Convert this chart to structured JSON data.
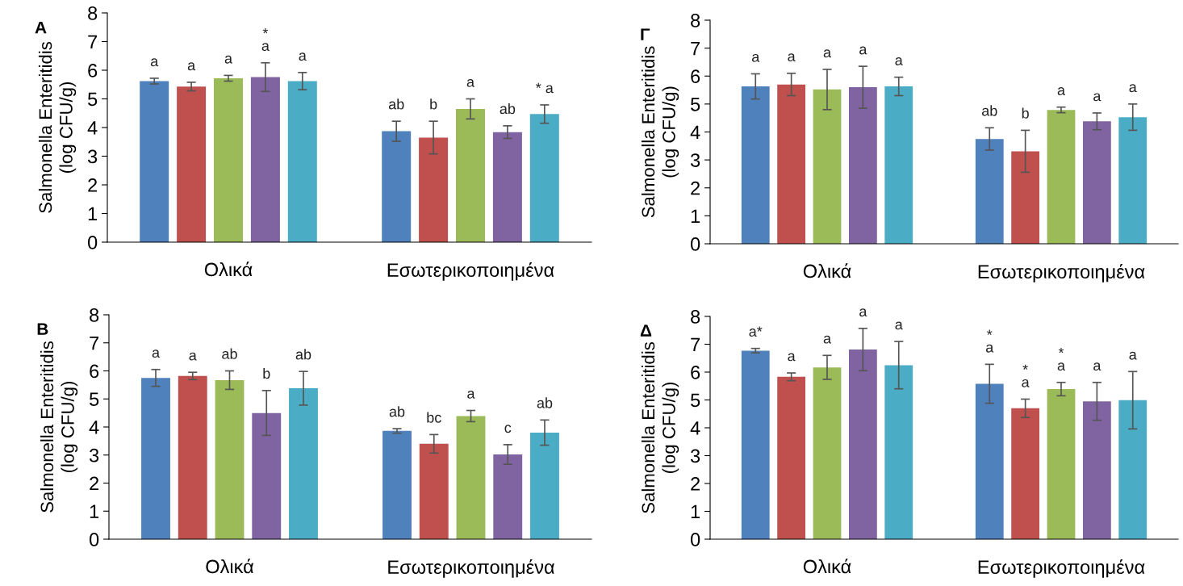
{
  "chart_data": [
    {
      "type": "bar",
      "title": "A",
      "ylabel": "Salmonella Enteritidis\n(log CFU/g)",
      "categories": [
        "Ολικά",
        "Εσωτερικοποιημένα"
      ],
      "ylim": [
        0,
        8
      ],
      "yticks": [
        0,
        1,
        2,
        3,
        4,
        5,
        6,
        7,
        8
      ],
      "series": [
        {
          "color": "#4f81bd",
          "values": [
            5.62,
            3.87
          ],
          "errors": [
            0.1,
            0.35
          ],
          "value_labels": [
            "a",
            "ab"
          ]
        },
        {
          "color": "#c0504d",
          "values": [
            5.43,
            3.65
          ],
          "errors": [
            0.15,
            0.57
          ],
          "value_labels": [
            "a",
            "b"
          ]
        },
        {
          "color": "#9bbb59",
          "values": [
            5.72,
            4.65
          ],
          "errors": [
            0.1,
            0.35
          ],
          "value_labels": [
            "a",
            "a"
          ]
        },
        {
          "color": "#8064a2",
          "values": [
            5.76,
            3.84
          ],
          "errors": [
            0.5,
            0.22
          ],
          "value_labels": [
            "*\na",
            "ab"
          ]
        },
        {
          "color": "#4bacc6",
          "values": [
            5.62,
            4.47
          ],
          "errors": [
            0.3,
            0.32
          ],
          "value_labels": [
            "a",
            "* a"
          ]
        }
      ]
    },
    {
      "type": "bar",
      "title": "Γ",
      "ylabel": "Salmonella Enteritidis\n(log CFU/g)",
      "categories": [
        "Ολικά",
        "Εσωτερικοποιημένα"
      ],
      "ylim": [
        0,
        8
      ],
      "yticks": [
        0,
        1,
        2,
        3,
        4,
        5,
        6,
        7,
        8
      ],
      "series": [
        {
          "color": "#4f81bd",
          "values": [
            5.63,
            3.75
          ],
          "errors": [
            0.45,
            0.4
          ],
          "value_labels": [
            "a",
            "ab"
          ]
        },
        {
          "color": "#c0504d",
          "values": [
            5.7,
            3.31
          ],
          "errors": [
            0.4,
            0.75
          ],
          "value_labels": [
            "a",
            "b"
          ]
        },
        {
          "color": "#9bbb59",
          "values": [
            5.52,
            4.79
          ],
          "errors": [
            0.72,
            0.1
          ],
          "value_labels": [
            "a",
            "a"
          ]
        },
        {
          "color": "#8064a2",
          "values": [
            5.6,
            4.38
          ],
          "errors": [
            0.75,
            0.3
          ],
          "value_labels": [
            "a",
            "a"
          ]
        },
        {
          "color": "#4bacc6",
          "values": [
            5.63,
            4.53
          ],
          "errors": [
            0.33,
            0.47
          ],
          "value_labels": [
            "a",
            "a"
          ]
        }
      ]
    },
    {
      "type": "bar",
      "title": "B",
      "ylabel": "Salmonella Enteritidis\n(log CFU/g)",
      "categories": [
        "Ολικά",
        "Εσωτερικοποιημένα"
      ],
      "ylim": [
        0,
        8
      ],
      "yticks": [
        0,
        1,
        2,
        3,
        4,
        5,
        6,
        7,
        8
      ],
      "series": [
        {
          "color": "#4f81bd",
          "values": [
            5.75,
            3.86
          ],
          "errors": [
            0.3,
            0.08
          ],
          "value_labels": [
            "a",
            "ab"
          ]
        },
        {
          "color": "#c0504d",
          "values": [
            5.82,
            3.4
          ],
          "errors": [
            0.13,
            0.33
          ],
          "value_labels": [
            "a",
            "bc"
          ]
        },
        {
          "color": "#9bbb59",
          "values": [
            5.67,
            4.39
          ],
          "errors": [
            0.33,
            0.2
          ],
          "value_labels": [
            "ab",
            "a"
          ]
        },
        {
          "color": "#8064a2",
          "values": [
            4.5,
            3.02
          ],
          "errors": [
            0.8,
            0.35
          ],
          "value_labels": [
            "b",
            "c"
          ]
        },
        {
          "color": "#4bacc6",
          "values": [
            5.38,
            3.8
          ],
          "errors": [
            0.6,
            0.45
          ],
          "value_labels": [
            "ab",
            "ab"
          ]
        }
      ]
    },
    {
      "type": "bar",
      "title": "Δ",
      "ylabel": "Salmonella Enteritidis\n(log CFU/g)",
      "categories": [
        "Ολικά",
        "Εσωτερικοποιημένα"
      ],
      "ylim": [
        0,
        8
      ],
      "yticks": [
        0,
        1,
        2,
        3,
        4,
        5,
        6,
        7,
        8
      ],
      "series": [
        {
          "color": "#4f81bd",
          "values": [
            6.77,
            5.58
          ],
          "errors": [
            0.08,
            0.7
          ],
          "value_labels": [
            "a*",
            "*\na"
          ]
        },
        {
          "color": "#c0504d",
          "values": [
            5.83,
            4.7
          ],
          "errors": [
            0.14,
            0.33
          ],
          "value_labels": [
            "a",
            "*\na"
          ]
        },
        {
          "color": "#9bbb59",
          "values": [
            6.17,
            5.39
          ],
          "errors": [
            0.43,
            0.24
          ],
          "value_labels": [
            "a",
            "*\na"
          ]
        },
        {
          "color": "#8064a2",
          "values": [
            6.81,
            4.95
          ],
          "errors": [
            0.76,
            0.68
          ],
          "value_labels": [
            "a",
            "a"
          ]
        },
        {
          "color": "#4bacc6",
          "values": [
            6.25,
            4.99
          ],
          "errors": [
            0.85,
            1.03
          ],
          "value_labels": [
            "a",
            "a"
          ]
        }
      ]
    }
  ]
}
